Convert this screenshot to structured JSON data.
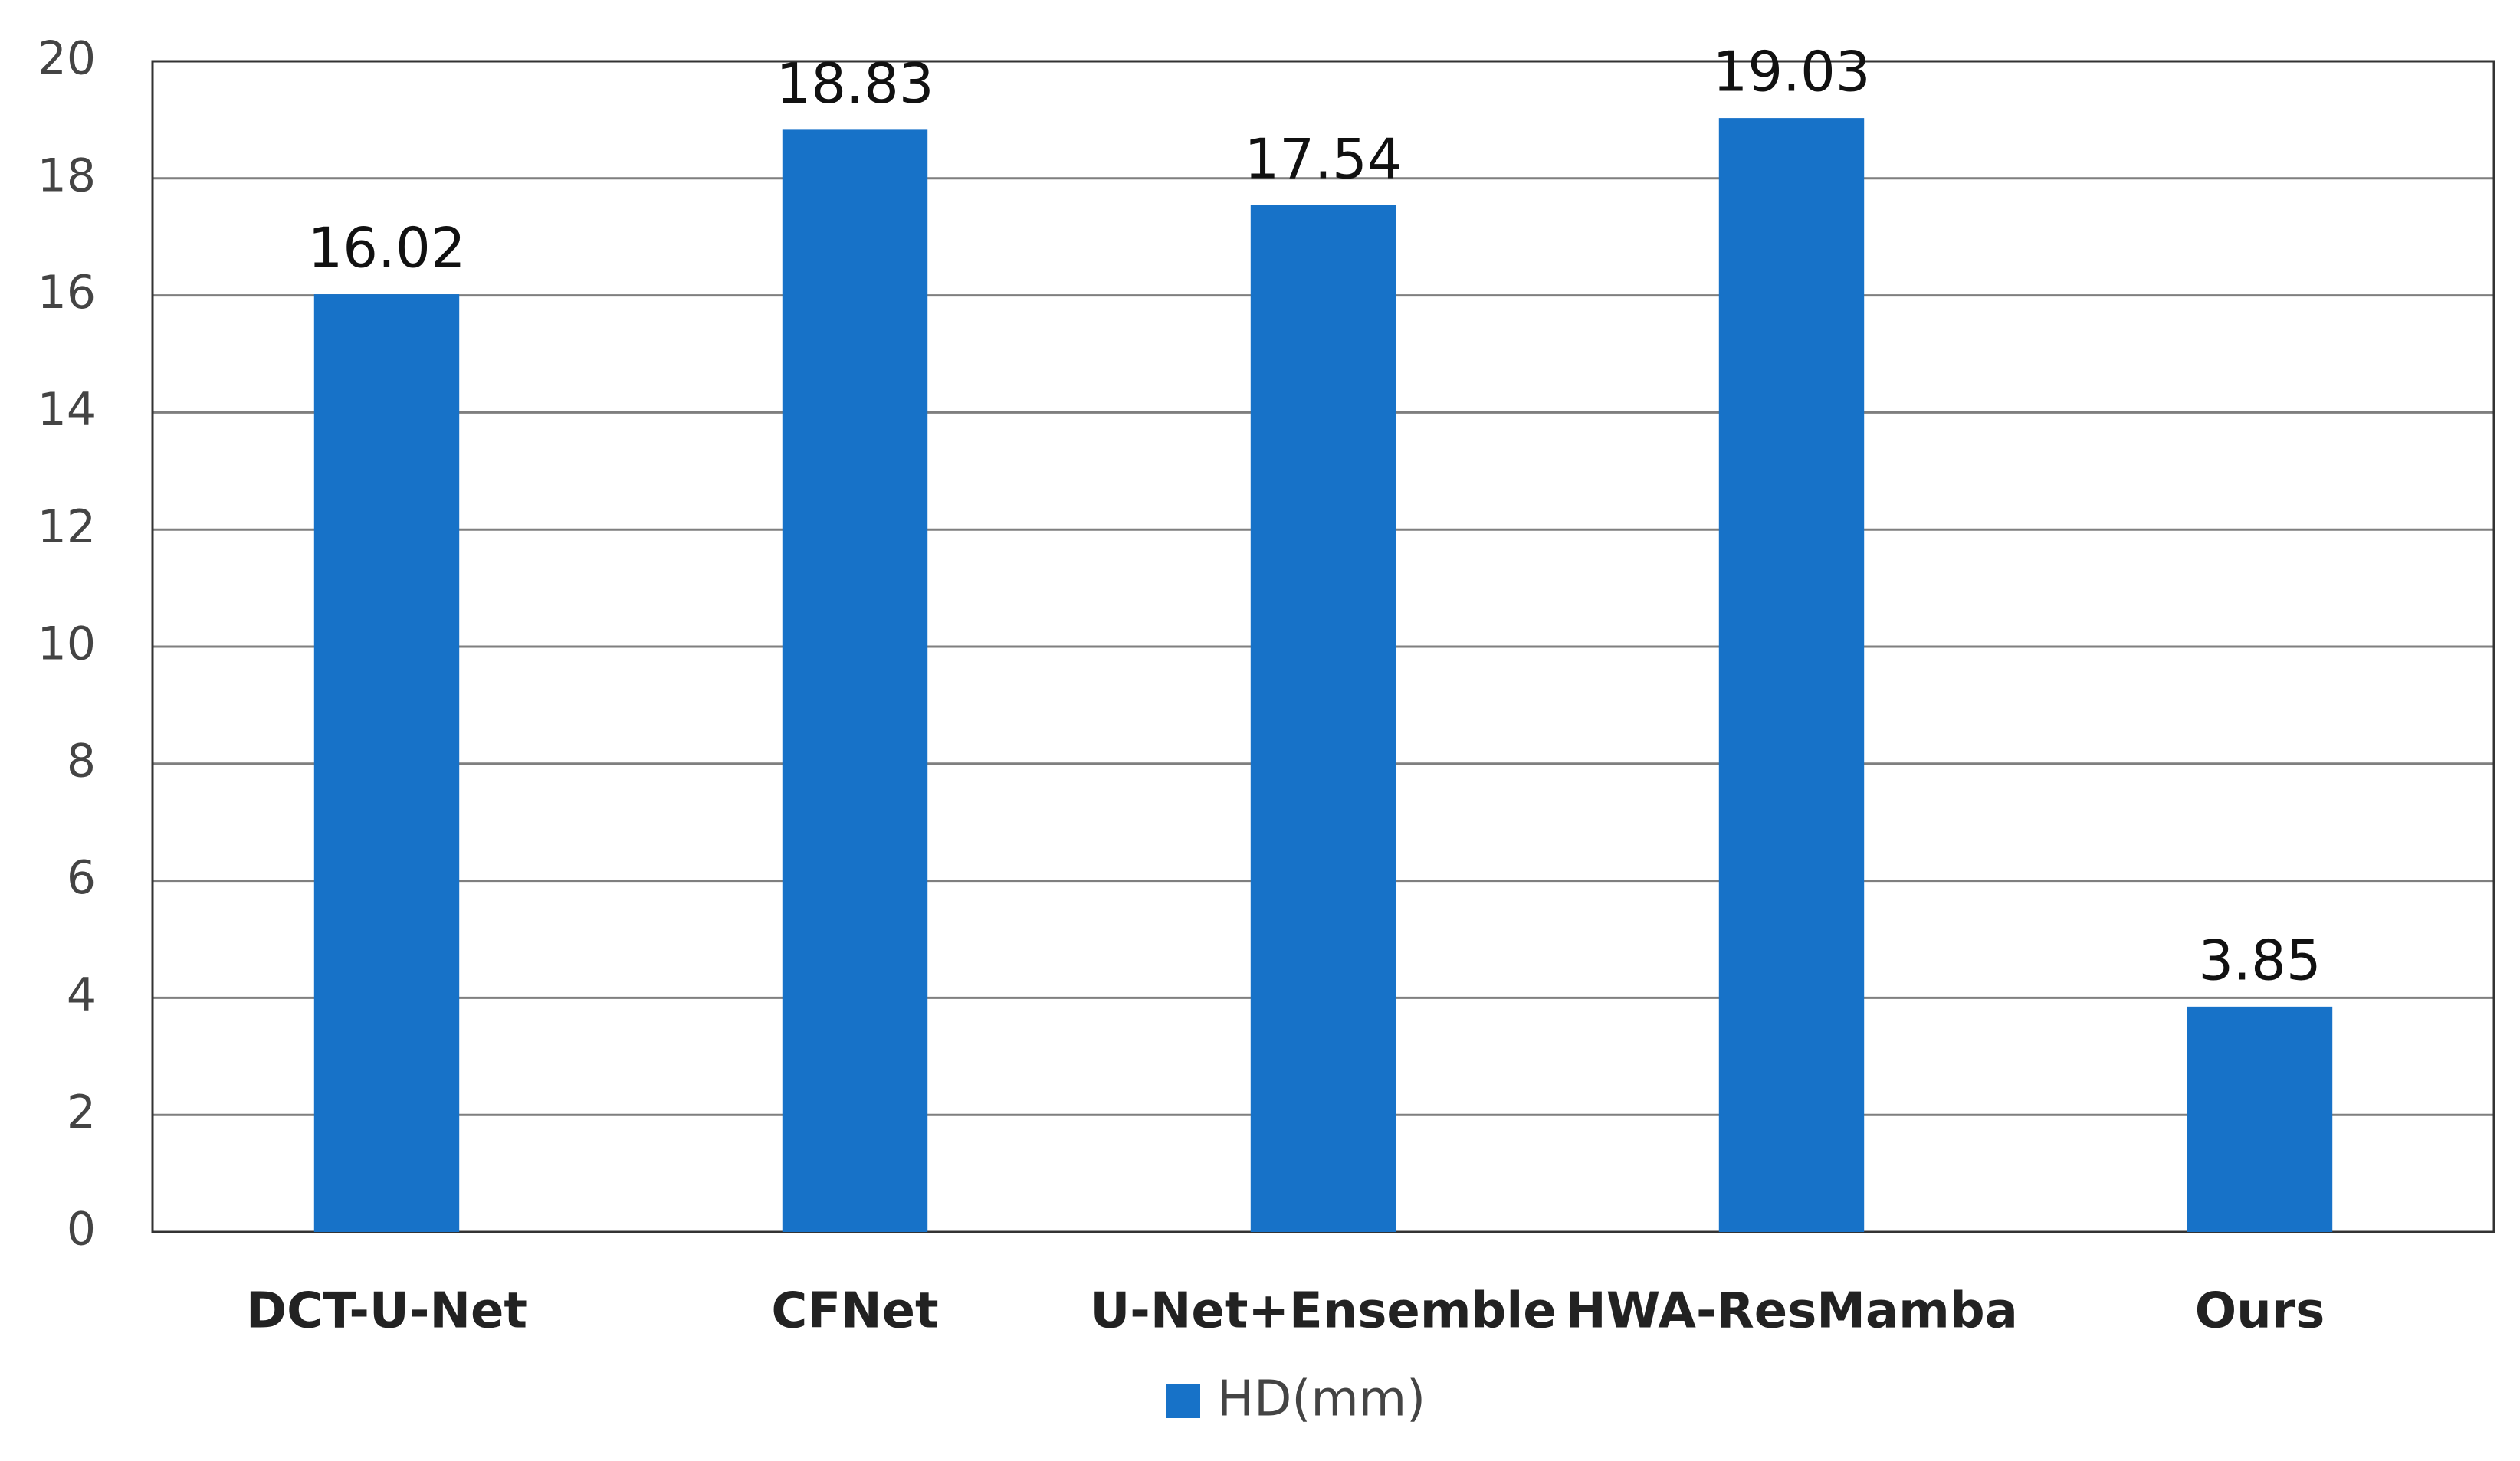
{
  "chart_data": {
    "type": "bar",
    "categories": [
      "DCT-U-Net",
      "CFNet",
      "U-Net+Ensemble",
      "HWA-ResMamba",
      "Ours"
    ],
    "series": [
      {
        "name": "HD(mm)",
        "color": "#1772c8",
        "values": [
          16.02,
          18.83,
          17.54,
          19.03,
          3.85
        ]
      }
    ],
    "ylim": [
      0,
      20
    ],
    "yticks": [
      0,
      2,
      4,
      6,
      8,
      10,
      12,
      14,
      16,
      18,
      20
    ],
    "grid": true,
    "legend": "bottom"
  }
}
